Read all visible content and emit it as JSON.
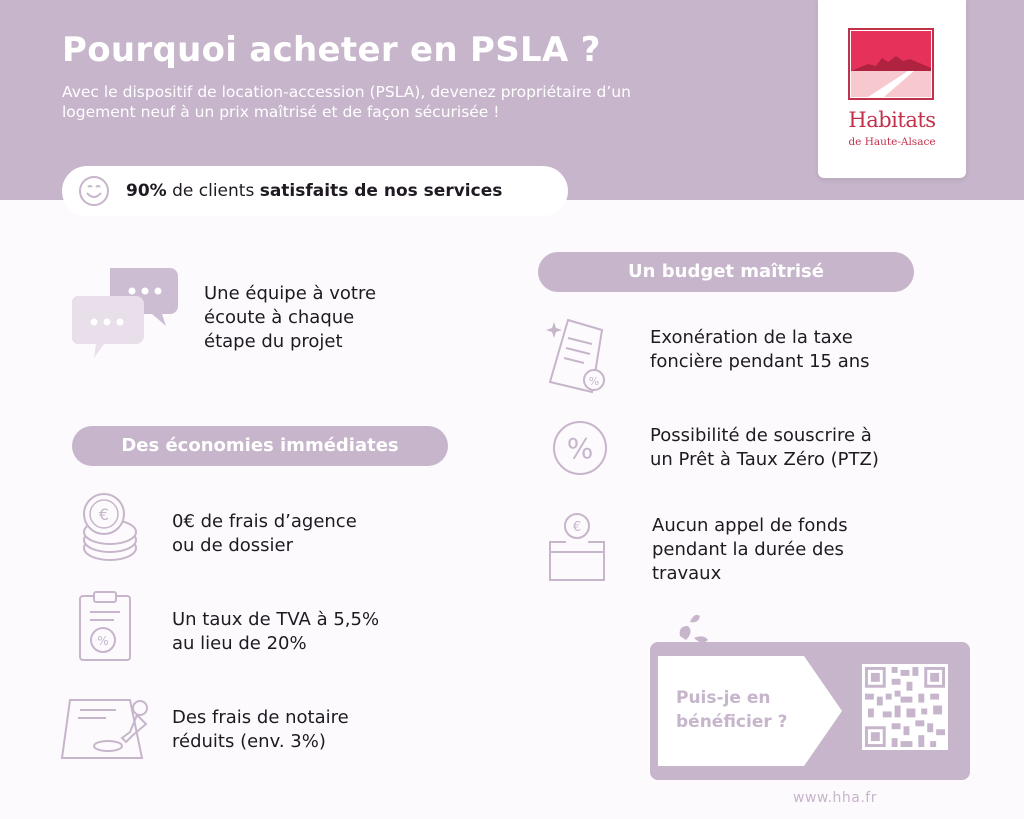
{
  "header": {
    "title": "Pourquoi acheter en PSLA  ?",
    "intro": "Avec le dispositif de location-accession (PSLA), devenez propriétaire d’un logement neuf à un prix maîtrisé et de façon sécurisée !"
  },
  "logo": {
    "name": "Habitats",
    "subtitle": "de Haute-Alsace"
  },
  "satisfaction": {
    "percent": "90%",
    "middle": " de clients ",
    "strong": "satisfaits de nos services"
  },
  "team": {
    "text": "Une équipe à votre\nécoute à chaque\nétape du projet"
  },
  "economies": {
    "title": "Des économies immédiates",
    "items": [
      {
        "text": "0€ de frais d’agence\nou de dossier",
        "icon": "coins-icon"
      },
      {
        "text": "Un taux de TVA à 5,5%\nau lieu de 20%",
        "icon": "clipboard-percent-icon"
      },
      {
        "text": "Des frais de notaire\nréduits (env. 3%)",
        "icon": "stamp-document-icon"
      }
    ]
  },
  "budget": {
    "title": "Un budget maîtrisé",
    "items": [
      {
        "text": "Exonération de la taxe\nfoncière pendant 15 ans",
        "icon": "tax-document-icon"
      },
      {
        "text": "Possibilité de souscrire à\nun Prêt à Taux Zéro (PTZ)",
        "icon": "percent-circle-icon"
      },
      {
        "text": "Aucun appel de fonds\npendant la durée des\ntravaux",
        "icon": "coin-box-icon"
      }
    ]
  },
  "cta": {
    "question": "Puis-je en\nbénéficier ?"
  },
  "footer": {
    "website": "www.hha.fr"
  },
  "colors": {
    "accent": "#c6b5cb",
    "brand": "#c2304a",
    "background": "#fdfafd"
  }
}
